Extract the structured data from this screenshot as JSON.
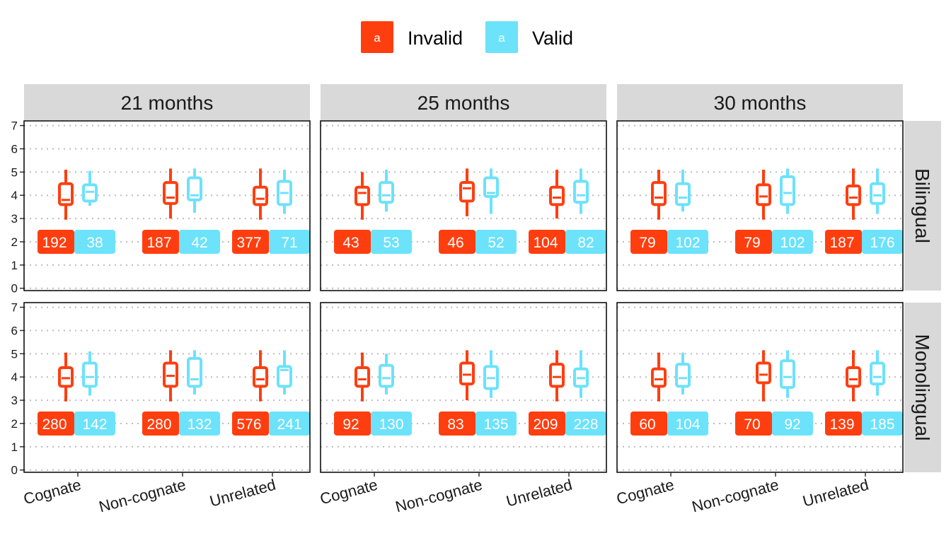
{
  "chart_data": {
    "type": "box",
    "legend": {
      "position": "top",
      "items": [
        {
          "key": "Invalid",
          "label": "Invalid",
          "swatch_text": "a",
          "color": "#FF3E0F"
        },
        {
          "key": "Valid",
          "label": "Valid",
          "swatch_text": "a",
          "color": "#6CE2FB"
        }
      ]
    },
    "col_facets": [
      "21 months",
      "25 months",
      "30 months"
    ],
    "row_facets": [
      "Bilingual",
      "Monolingual"
    ],
    "categories": [
      "Cognate",
      "Non-cognate",
      "Unrelated"
    ],
    "y_ticks": [
      "0",
      "1",
      "2",
      "3",
      "4",
      "5",
      "6",
      "7"
    ],
    "ylim": [
      -0.1,
      7.2
    ],
    "grid": "dotted horizontal",
    "colors": {
      "invalid": "#FF3E0F",
      "valid": "#6CE2FB",
      "strip": "#D9D9D9",
      "grid": "#BDBDBD",
      "panel_border": "#000000"
    },
    "panels": [
      {
        "col": 0,
        "row": 0,
        "groups": [
          {
            "category": "Cognate",
            "invalid": {
              "min": 2.95,
              "q1": 3.6,
              "median": 3.8,
              "q3": 4.5,
              "max": 5.1,
              "n": "192"
            },
            "valid": {
              "min": 3.55,
              "q1": 3.75,
              "median": 4.15,
              "q3": 4.45,
              "max": 5.05,
              "n": "38"
            }
          },
          {
            "category": "Non-cognate",
            "invalid": {
              "min": 3.0,
              "q1": 3.65,
              "median": 3.9,
              "q3": 4.55,
              "max": 5.15,
              "n": "187"
            },
            "valid": {
              "min": 3.25,
              "q1": 3.8,
              "median": 4.0,
              "q3": 4.75,
              "max": 5.15,
              "n": "42"
            }
          },
          {
            "category": "Unrelated",
            "invalid": {
              "min": 2.95,
              "q1": 3.6,
              "median": 3.85,
              "q3": 4.35,
              "max": 5.15,
              "n": "377"
            },
            "valid": {
              "min": 3.2,
              "q1": 3.6,
              "median": 4.1,
              "q3": 4.6,
              "max": 5.1,
              "n": "71"
            }
          }
        ]
      },
      {
        "col": 1,
        "row": 0,
        "groups": [
          {
            "category": "Cognate",
            "invalid": {
              "min": 2.95,
              "q1": 3.6,
              "median": 4.1,
              "q3": 4.35,
              "max": 5.0,
              "n": "43"
            },
            "valid": {
              "min": 3.3,
              "q1": 3.7,
              "median": 4.0,
              "q3": 4.55,
              "max": 5.1,
              "n": "53"
            }
          },
          {
            "category": "Non-cognate",
            "invalid": {
              "min": 3.1,
              "q1": 3.75,
              "median": 4.3,
              "q3": 4.55,
              "max": 5.15,
              "n": "46"
            },
            "valid": {
              "min": 3.2,
              "q1": 3.95,
              "median": 4.1,
              "q3": 4.75,
              "max": 5.15,
              "n": "52"
            }
          },
          {
            "category": "Unrelated",
            "invalid": {
              "min": 3.0,
              "q1": 3.6,
              "median": 3.9,
              "q3": 4.35,
              "max": 5.1,
              "n": "104"
            },
            "valid": {
              "min": 3.2,
              "q1": 3.7,
              "median": 4.0,
              "q3": 4.6,
              "max": 5.15,
              "n": "82"
            }
          }
        ]
      },
      {
        "col": 2,
        "row": 0,
        "groups": [
          {
            "category": "Cognate",
            "invalid": {
              "min": 2.95,
              "q1": 3.6,
              "median": 3.9,
              "q3": 4.55,
              "max": 5.1,
              "n": "79"
            },
            "valid": {
              "min": 3.3,
              "q1": 3.6,
              "median": 3.9,
              "q3": 4.5,
              "max": 5.1,
              "n": "102"
            }
          },
          {
            "category": "Non-cognate",
            "invalid": {
              "min": 2.95,
              "q1": 3.6,
              "median": 3.95,
              "q3": 4.45,
              "max": 5.1,
              "n": "79"
            },
            "valid": {
              "min": 3.2,
              "q1": 3.6,
              "median": 4.1,
              "q3": 4.8,
              "max": 5.15,
              "n": "102"
            }
          },
          {
            "category": "Unrelated",
            "invalid": {
              "min": 2.95,
              "q1": 3.6,
              "median": 3.9,
              "q3": 4.4,
              "max": 5.15,
              "n": "187"
            },
            "valid": {
              "min": 3.2,
              "q1": 3.65,
              "median": 4.0,
              "q3": 4.5,
              "max": 5.15,
              "n": "176"
            }
          }
        ]
      },
      {
        "col": 0,
        "row": 1,
        "groups": [
          {
            "category": "Cognate",
            "invalid": {
              "min": 2.95,
              "q1": 3.6,
              "median": 3.95,
              "q3": 4.4,
              "max": 5.05,
              "n": "280"
            },
            "valid": {
              "min": 3.2,
              "q1": 3.6,
              "median": 4.0,
              "q3": 4.6,
              "max": 5.1,
              "n": "142"
            }
          },
          {
            "category": "Non-cognate",
            "invalid": {
              "min": 2.95,
              "q1": 3.6,
              "median": 4.05,
              "q3": 4.6,
              "max": 5.15,
              "n": "280"
            },
            "valid": {
              "min": 3.25,
              "q1": 3.6,
              "median": 3.9,
              "q3": 4.8,
              "max": 5.15,
              "n": "132"
            }
          },
          {
            "category": "Unrelated",
            "invalid": {
              "min": 2.95,
              "q1": 3.6,
              "median": 3.9,
              "q3": 4.4,
              "max": 5.15,
              "n": "576"
            },
            "valid": {
              "min": 3.25,
              "q1": 3.6,
              "median": 4.3,
              "q3": 4.45,
              "max": 5.15,
              "n": "241"
            }
          }
        ]
      },
      {
        "col": 1,
        "row": 1,
        "groups": [
          {
            "category": "Cognate",
            "invalid": {
              "min": 2.95,
              "q1": 3.6,
              "median": 3.9,
              "q3": 4.4,
              "max": 5.05,
              "n": "92"
            },
            "valid": {
              "min": 3.25,
              "q1": 3.6,
              "median": 3.95,
              "q3": 4.5,
              "max": 5.0,
              "n": "130"
            }
          },
          {
            "category": "Non-cognate",
            "invalid": {
              "min": 3.0,
              "q1": 3.7,
              "median": 4.1,
              "q3": 4.6,
              "max": 5.15,
              "n": "83"
            },
            "valid": {
              "min": 3.1,
              "q1": 3.5,
              "median": 3.95,
              "q3": 4.45,
              "max": 5.15,
              "n": "135"
            }
          },
          {
            "category": "Unrelated",
            "invalid": {
              "min": 2.95,
              "q1": 3.6,
              "median": 4.0,
              "q3": 4.55,
              "max": 5.15,
              "n": "209"
            },
            "valid": {
              "min": 3.1,
              "q1": 3.6,
              "median": 3.95,
              "q3": 4.35,
              "max": 5.15,
              "n": "228"
            }
          }
        ]
      },
      {
        "col": 2,
        "row": 1,
        "groups": [
          {
            "category": "Cognate",
            "invalid": {
              "min": 2.95,
              "q1": 3.6,
              "median": 3.9,
              "q3": 4.35,
              "max": 5.05,
              "n": "60"
            },
            "valid": {
              "min": 3.25,
              "q1": 3.6,
              "median": 3.95,
              "q3": 4.55,
              "max": 5.05,
              "n": "104"
            }
          },
          {
            "category": "Non-cognate",
            "invalid": {
              "min": 2.95,
              "q1": 3.75,
              "median": 4.1,
              "q3": 4.6,
              "max": 5.15,
              "n": "70"
            },
            "valid": {
              "min": 3.1,
              "q1": 3.55,
              "median": 4.0,
              "q3": 4.7,
              "max": 5.15,
              "n": "92"
            }
          },
          {
            "category": "Unrelated",
            "invalid": {
              "min": 2.95,
              "q1": 3.6,
              "median": 3.9,
              "q3": 4.4,
              "max": 5.15,
              "n": "139"
            },
            "valid": {
              "min": 3.2,
              "q1": 3.7,
              "median": 4.0,
              "q3": 4.6,
              "max": 5.15,
              "n": "185"
            }
          }
        ]
      }
    ],
    "count_label_y": 2
  }
}
